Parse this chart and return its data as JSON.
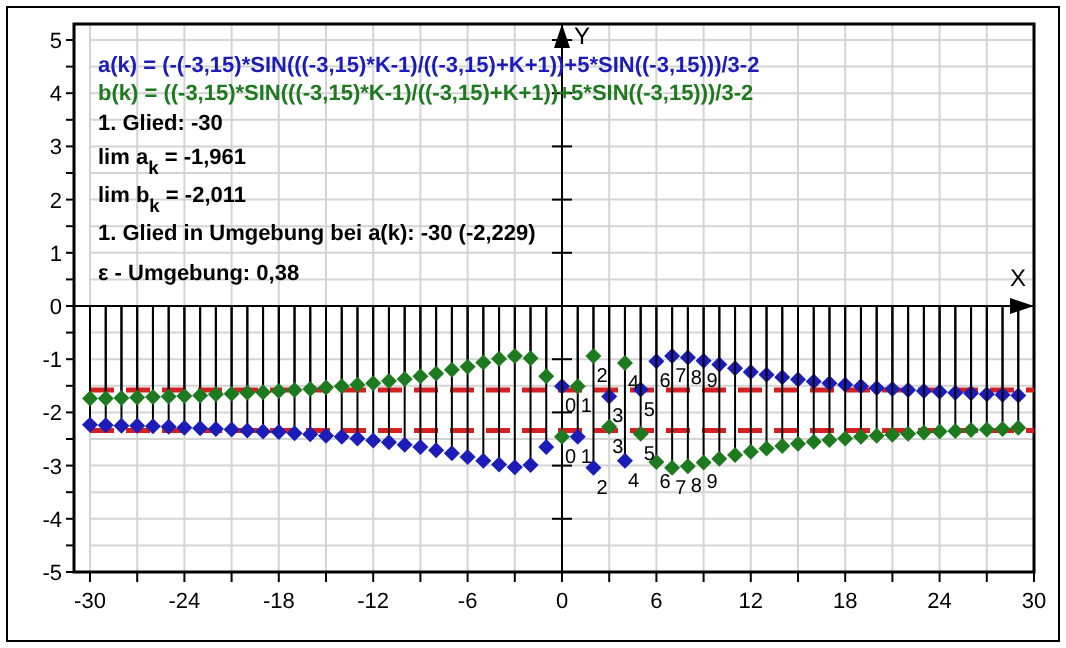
{
  "chart_data": {
    "type": "lollipop",
    "xlabel": "X",
    "ylabel": "Y",
    "marker": "diamond",
    "grid": true,
    "xlim": [
      -30,
      30
    ],
    "ylim": [
      -5,
      5
    ],
    "xticks": [
      -30,
      {
        "value": -27,
        "label": null
      },
      -24,
      {
        "value": -21,
        "label": null
      },
      -18,
      {
        "value": -15,
        "label": null
      },
      -12,
      {
        "value": -9,
        "label": null
      },
      -6,
      {
        "value": -3,
        "label": null
      },
      0,
      {
        "value": 3,
        "label": null
      },
      6,
      {
        "value": 9,
        "label": null
      },
      12,
      {
        "value": 15,
        "label": null
      },
      18,
      {
        "value": 21,
        "label": null
      },
      24,
      {
        "value": 27,
        "label": null
      },
      30
    ],
    "yticks": [
      -5,
      {
        "value": -4.5,
        "label": null
      },
      -4,
      {
        "value": -3.5,
        "label": null
      },
      -3,
      {
        "value": -2.5,
        "label": null
      },
      -2,
      {
        "value": -1.5,
        "label": null
      },
      -1,
      {
        "value": -0.5,
        "label": null
      },
      0,
      {
        "value": 0.5,
        "label": null
      },
      1,
      {
        "value": 1.5,
        "label": null
      },
      2,
      {
        "value": 2.5,
        "label": null
      },
      3,
      {
        "value": 3.5,
        "label": null
      },
      4,
      {
        "value": 4.5,
        "label": null
      },
      5
    ],
    "x": [
      -30,
      -29,
      -28,
      -27,
      -26,
      -25,
      -24,
      -23,
      -22,
      -21,
      -20,
      -19,
      -18,
      -17,
      -16,
      -15,
      -14,
      -13,
      -12,
      -11,
      -10,
      -9,
      -8,
      -7,
      -6,
      -5,
      -4,
      -3,
      -2,
      -1,
      0,
      1,
      2,
      3,
      4,
      5,
      6,
      7,
      8,
      9,
      10,
      11,
      12,
      13,
      14,
      15,
      16,
      17,
      18,
      19,
      20,
      21,
      22,
      23,
      24,
      25,
      26,
      27,
      28,
      29
    ],
    "series": [
      {
        "color": "#1c1cb8",
        "values": [
          -2.23,
          -2.24,
          -2.25,
          -2.25,
          -2.26,
          -2.27,
          -2.29,
          -2.3,
          -2.31,
          -2.32,
          -2.34,
          -2.36,
          -2.37,
          -2.39,
          -2.41,
          -2.44,
          -2.46,
          -2.49,
          -2.53,
          -2.56,
          -2.61,
          -2.65,
          -2.71,
          -2.77,
          -2.84,
          -2.91,
          -2.98,
          -3.03,
          -2.99,
          -2.65,
          -1.51,
          -2.46,
          -3.04,
          -1.7,
          -2.91,
          -1.57,
          -1.04,
          -0.94,
          -0.97,
          -1.03,
          -1.1,
          -1.17,
          -1.24,
          -1.29,
          -1.34,
          -1.38,
          -1.42,
          -1.45,
          -1.48,
          -1.51,
          -1.54,
          -1.56,
          -1.58,
          -1.6,
          -1.61,
          -1.63,
          -1.64,
          -1.66,
          -1.67,
          -1.68
        ]
      },
      {
        "color": "#1e7a1e",
        "values": [
          -1.74,
          -1.74,
          -1.73,
          -1.72,
          -1.71,
          -1.7,
          -1.69,
          -1.68,
          -1.66,
          -1.65,
          -1.63,
          -1.62,
          -1.6,
          -1.58,
          -1.56,
          -1.53,
          -1.51,
          -1.48,
          -1.45,
          -1.41,
          -1.37,
          -1.32,
          -1.27,
          -1.2,
          -1.14,
          -1.06,
          -0.99,
          -0.94,
          -0.98,
          -1.32,
          -2.46,
          -1.51,
          -0.94,
          -2.27,
          -1.07,
          -2.4,
          -2.93,
          -3.04,
          -3.01,
          -2.94,
          -2.87,
          -2.8,
          -2.74,
          -2.68,
          -2.63,
          -2.59,
          -2.55,
          -2.52,
          -2.49,
          -2.46,
          -2.44,
          -2.42,
          -2.4,
          -2.38,
          -2.36,
          -2.35,
          -2.33,
          -2.32,
          -2.31,
          -2.29
        ]
      }
    ],
    "ref_lines": [
      {
        "axis": "y",
        "value": -1.581,
        "color": "#d42020",
        "line_style": "dashed"
      },
      {
        "axis": "y",
        "value": -2.341,
        "color": "#d42020",
        "line_style": "dashed"
      }
    ],
    "annotations": [
      "a(k) = (-(-3,15)*SIN(((-3,15)*K-1)/((-3,15)+K+1))+5*SIN((-3,15)))/3-2",
      "b(k) = ((-3,15)*SIN(((-3,15)*K-1)/((-3,15)+K+1))+5*SIN((-3,15)))/3-2",
      "1. Glied: -30",
      "lim a$_{k}$ = -1,961",
      "lim b$_{k}$ = -2,011",
      "1. Glied in Umgebung bei a(k): -30  (-2,229)",
      "ε - Umgebung: 0,38",
      {
        "text": "0",
        "x": 0,
        "y": -1.51
      },
      {
        "text": "1",
        "x": 1,
        "y": -2.46
      },
      {
        "text": "2",
        "x": 2,
        "y": -3.04
      },
      {
        "text": "3",
        "x": 3,
        "y": -1.7
      },
      {
        "text": "4",
        "x": 4,
        "y": -2.91
      },
      {
        "text": "5",
        "x": 5,
        "y": -1.57
      },
      {
        "text": "6",
        "x": 6,
        "y": -1.04
      },
      {
        "text": "7",
        "x": 7,
        "y": -0.94
      },
      {
        "text": "8",
        "x": 8,
        "y": -0.97
      },
      {
        "text": "9",
        "x": 9,
        "y": -1.03
      },
      {
        "text": "0",
        "x": 0,
        "y": -2.46
      },
      {
        "text": "1",
        "x": 1,
        "y": -1.51
      },
      {
        "text": "2",
        "x": 2,
        "y": -0.94
      },
      {
        "text": "3",
        "x": 3,
        "y": -2.27
      },
      {
        "text": "4",
        "x": 4,
        "y": -1.07
      },
      {
        "text": "5",
        "x": 5,
        "y": -2.4
      },
      {
        "text": "6",
        "x": 6,
        "y": -2.93
      },
      {
        "text": "7",
        "x": 7,
        "y": -3.04
      },
      {
        "text": "8",
        "x": 8,
        "y": -3.01
      },
      {
        "text": "9",
        "x": 9,
        "y": -2.94
      }
    ]
  }
}
